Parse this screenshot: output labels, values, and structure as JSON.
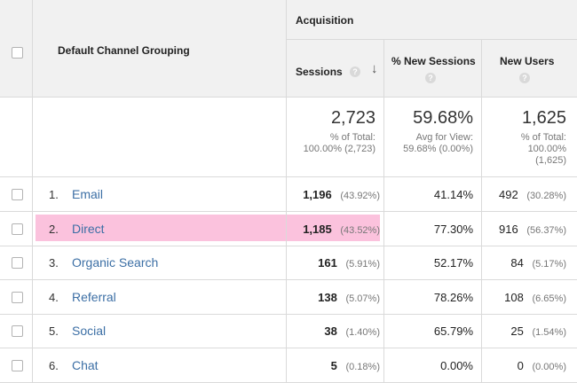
{
  "header": {
    "group_label": "Acquisition",
    "dimension_label": "Default Channel Grouping",
    "columns": [
      {
        "label": "Sessions",
        "help_icon": "question-icon",
        "sort_icon": "arrow-down-icon"
      },
      {
        "label": "% New Sessions",
        "help_icon": "question-icon"
      },
      {
        "label": "New Users",
        "help_icon": "question-icon"
      }
    ]
  },
  "totals": {
    "sessions": {
      "value": "2,723",
      "line1": "% of Total:",
      "line2": "100.00% (2,723)"
    },
    "new_sessions": {
      "value": "59.68%",
      "line1": "Avg for View:",
      "line2": "59.68% (0.00%)"
    },
    "new_users": {
      "value": "1,625",
      "line1": "% of Total:",
      "line2": "100.00%",
      "line3": "(1,625)"
    }
  },
  "rows": [
    {
      "index": "1.",
      "channel": "Email",
      "sessions": "1,196",
      "sessions_pct": "(43.92%)",
      "new_sessions": "41.14%",
      "new_users": "492",
      "new_users_pct": "(30.28%)"
    },
    {
      "index": "2.",
      "channel": "Direct",
      "sessions": "1,185",
      "sessions_pct": "(43.52%)",
      "new_sessions": "77.30%",
      "new_users": "916",
      "new_users_pct": "(56.37%)"
    },
    {
      "index": "3.",
      "channel": "Organic Search",
      "sessions": "161",
      "sessions_pct": "(5.91%)",
      "new_sessions": "52.17%",
      "new_users": "84",
      "new_users_pct": "(5.17%)"
    },
    {
      "index": "4.",
      "channel": "Referral",
      "sessions": "138",
      "sessions_pct": "(5.07%)",
      "new_sessions": "78.26%",
      "new_users": "108",
      "new_users_pct": "(6.65%)"
    },
    {
      "index": "5.",
      "channel": "Social",
      "sessions": "38",
      "sessions_pct": "(1.40%)",
      "new_sessions": "65.79%",
      "new_users": "25",
      "new_users_pct": "(1.54%)"
    },
    {
      "index": "6.",
      "channel": "Chat",
      "sessions": "5",
      "sessions_pct": "(0.18%)",
      "new_sessions": "0.00%",
      "new_users": "0",
      "new_users_pct": "(0.00%)"
    }
  ],
  "colors": {
    "highlight": "#fbc2dd",
    "link": "#3c6fa5",
    "header_bg": "#f1f1f1"
  }
}
